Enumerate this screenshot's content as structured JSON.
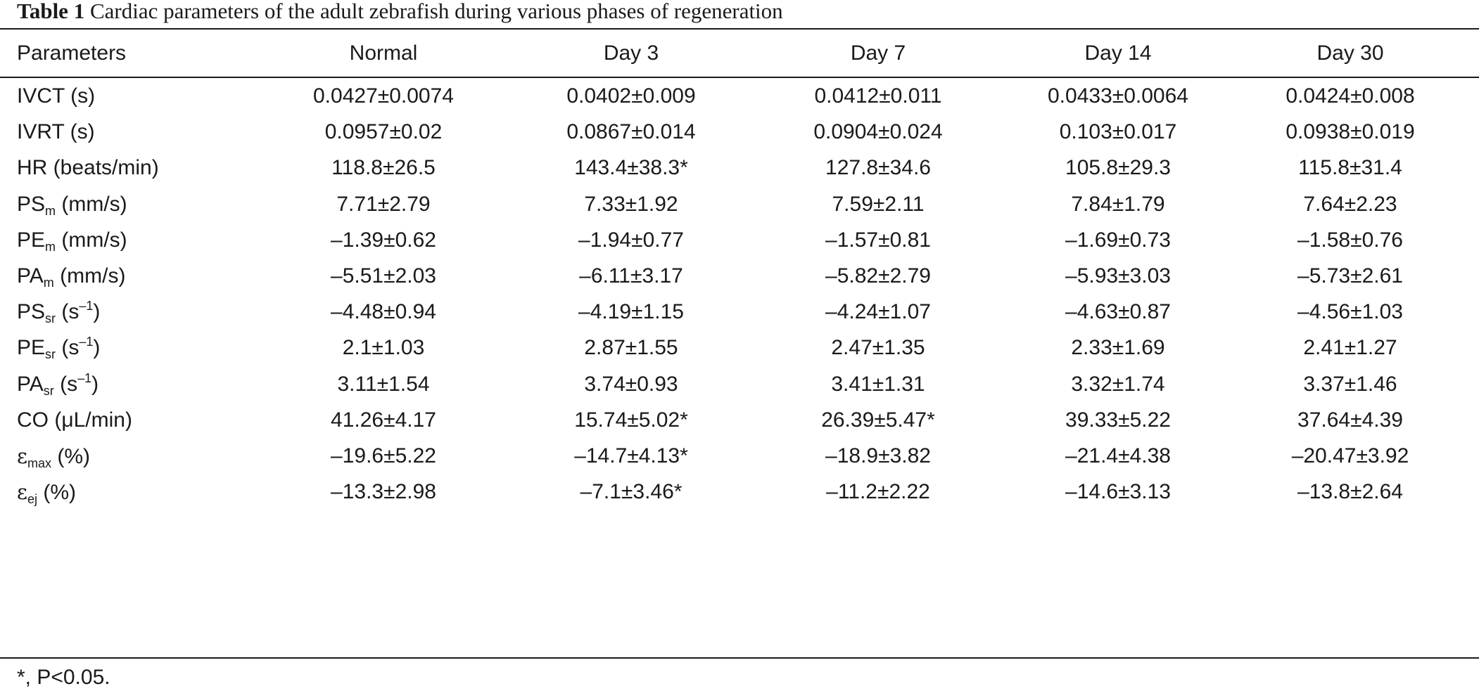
{
  "caption": {
    "label": "Table 1",
    "text": "Cardiac parameters of the adult zebrafish during various phases of regeneration"
  },
  "headers": [
    "Parameters",
    "Normal",
    "Day 3",
    "Day 7",
    "Day 14",
    "Day 30"
  ],
  "rows": [
    {
      "param_main": "IVCT (s)",
      "param_sub": "",
      "param_unit": "",
      "param_sup": "",
      "param_end": "",
      "values": [
        "0.0427±0.0074",
        "0.0402±0.009",
        "0.0412±0.011",
        "0.0433±0.0064",
        "0.0424±0.008"
      ]
    },
    {
      "param_main": "IVRT (s)",
      "param_sub": "",
      "param_unit": "",
      "param_sup": "",
      "param_end": "",
      "values": [
        "0.0957±0.02",
        "0.0867±0.014",
        "0.0904±0.024",
        "0.103±0.017",
        "0.0938±0.019"
      ]
    },
    {
      "param_main": "HR (beats/min)",
      "param_sub": "",
      "param_unit": "",
      "param_sup": "",
      "param_end": "",
      "values": [
        "118.8±26.5",
        "143.4±38.3*",
        "127.8±34.6",
        "105.8±29.3",
        "115.8±31.4"
      ]
    },
    {
      "param_main": "PS",
      "param_sub": "m",
      "param_unit": " (mm/s)",
      "param_sup": "",
      "param_end": "",
      "values": [
        "7.71±2.79",
        "7.33±1.92",
        "7.59±2.11",
        "7.84±1.79",
        "7.64±2.23"
      ]
    },
    {
      "param_main": "PE",
      "param_sub": "m",
      "param_unit": " (mm/s)",
      "param_sup": "",
      "param_end": "",
      "values": [
        "–1.39±0.62",
        "–1.94±0.77",
        "–1.57±0.81",
        "–1.69±0.73",
        "–1.58±0.76"
      ]
    },
    {
      "param_main": "PA",
      "param_sub": "m",
      "param_unit": " (mm/s)",
      "param_sup": "",
      "param_end": "",
      "values": [
        "–5.51±2.03",
        "–6.11±3.17",
        "–5.82±2.79",
        "–5.93±3.03",
        "–5.73±2.61"
      ]
    },
    {
      "param_main": "PS",
      "param_sub": "sr",
      "param_unit": " (s",
      "param_sup": "–1",
      "param_end": ")",
      "values": [
        "–4.48±0.94",
        "–4.19±1.15",
        "–4.24±1.07",
        "–4.63±0.87",
        "–4.56±1.03"
      ]
    },
    {
      "param_main": "PE",
      "param_sub": "sr",
      "param_unit": " (s",
      "param_sup": "–1",
      "param_end": ")",
      "values": [
        "2.1±1.03",
        "2.87±1.55",
        "2.47±1.35",
        "2.33±1.69",
        "2.41±1.27"
      ]
    },
    {
      "param_main": "PA",
      "param_sub": "sr",
      "param_unit": " (s",
      "param_sup": "–1",
      "param_end": ")",
      "values": [
        "3.11±1.54",
        "3.74±0.93",
        "3.41±1.31",
        "3.32±1.74",
        "3.37±1.46"
      ]
    },
    {
      "param_main": "CO (μL/min)",
      "param_sub": "",
      "param_unit": "",
      "param_sup": "",
      "param_end": "",
      "values": [
        "41.26±4.17",
        "15.74±5.02*",
        "26.39±5.47*",
        "39.33±5.22",
        "37.64±4.39"
      ]
    },
    {
      "param_main": "ε",
      "param_sub": "max",
      "param_unit": " (%)",
      "param_sup": "",
      "param_end": "",
      "values": [
        "–19.6±5.22",
        "–14.7±4.13*",
        "–18.9±3.82",
        "–21.4±4.38",
        "–20.47±3.92"
      ]
    },
    {
      "param_main": "ε",
      "param_sub": "ej",
      "param_unit": " (%)",
      "param_sup": "",
      "param_end": "",
      "values": [
        "–13.3±2.98",
        "–7.1±3.46*",
        "–11.2±2.22",
        "–14.6±3.13",
        "–13.8±2.64"
      ]
    }
  ],
  "footnote": "*, P<0.05."
}
